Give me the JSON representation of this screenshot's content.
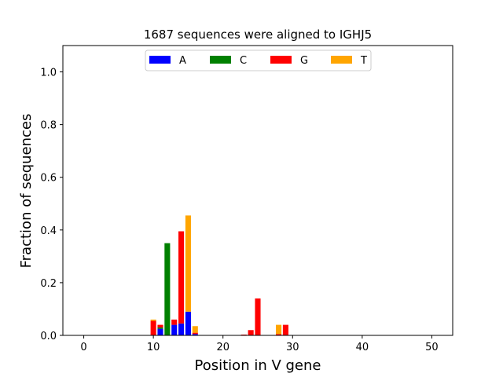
{
  "chart_data": {
    "type": "bar",
    "stacked": true,
    "title": "1687 sequences were aligned to IGHJ5",
    "xlabel": "Position in V gene",
    "ylabel": "Fraction of sequences",
    "xlim": [
      -3,
      53
    ],
    "ylim": [
      0,
      1.1
    ],
    "xticks": [
      0,
      10,
      20,
      30,
      40,
      50
    ],
    "yticks": [
      "0.0",
      "0.2",
      "0.4",
      "0.6",
      "0.8",
      "1.0"
    ],
    "grid": false,
    "legend_position": "top-center",
    "series": [
      {
        "name": "A",
        "color": "#0000ff",
        "points": [
          {
            "x": 11,
            "y": 0.025
          },
          {
            "x": 13,
            "y": 0.04
          },
          {
            "x": 14,
            "y": 0.045
          },
          {
            "x": 15,
            "y": 0.09
          },
          {
            "x": 16,
            "y": 0.005
          }
        ]
      },
      {
        "name": "C",
        "color": "#008000",
        "points": [
          {
            "x": 11,
            "y": 0.005
          },
          {
            "x": 12,
            "y": 0.35
          }
        ]
      },
      {
        "name": "G",
        "color": "#ff0000",
        "points": [
          {
            "x": 10,
            "y": 0.055
          },
          {
            "x": 11,
            "y": 0.01
          },
          {
            "x": 13,
            "y": 0.02
          },
          {
            "x": 14,
            "y": 0.35
          },
          {
            "x": 16,
            "y": 0.005
          },
          {
            "x": 23,
            "y": 0.003
          },
          {
            "x": 24,
            "y": 0.02
          },
          {
            "x": 25,
            "y": 0.14
          },
          {
            "x": 28,
            "y": 0.005
          },
          {
            "x": 29,
            "y": 0.04
          }
        ]
      },
      {
        "name": "T",
        "color": "#ffa500",
        "points": [
          {
            "x": 10,
            "y": 0.005
          },
          {
            "x": 15,
            "y": 0.365
          },
          {
            "x": 16,
            "y": 0.025
          },
          {
            "x": 28,
            "y": 0.035
          }
        ]
      }
    ]
  }
}
